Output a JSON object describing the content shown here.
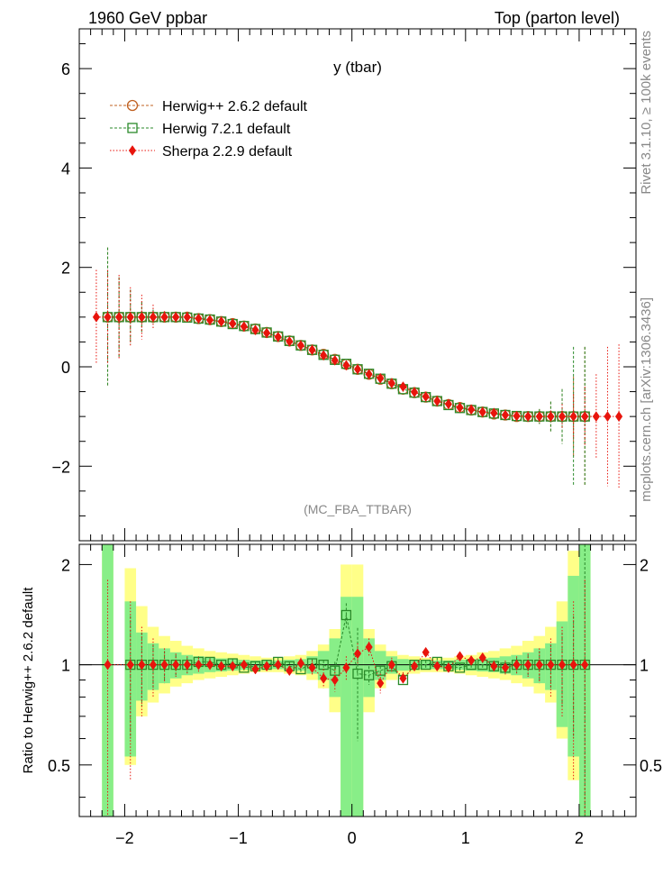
{
  "header": {
    "left": "1960 GeV ppbar",
    "right": "Top (parton level)"
  },
  "side_labels": {
    "rivet": "Rivet 3.1.10, ≥ 100k events",
    "mcplots": "mcplots.cern.ch [arXiv:1306.3436]"
  },
  "chart_data": [
    {
      "type": "line",
      "title": "y (tbar)",
      "watermark": "(MC_FBA_TTBAR)",
      "xlim": [
        -2.4,
        2.5
      ],
      "ylim": [
        -3.5,
        6.8
      ],
      "yticks": [
        -2,
        0,
        2,
        4,
        6
      ],
      "legend_position": "top-left",
      "series": [
        {
          "name": "Herwig++ 2.6.2 default",
          "color": "#c06020",
          "marker": "open-circle",
          "x": [
            -2.15,
            -2.05,
            -1.95,
            -1.85,
            -1.75,
            -1.65,
            -1.55,
            -1.45,
            -1.35,
            -1.25,
            -1.15,
            -1.05,
            -0.95,
            -0.85,
            -0.75,
            -0.65,
            -0.55,
            -0.45,
            -0.35,
            -0.25,
            -0.15,
            -0.05,
            0.05,
            0.15,
            0.25,
            0.35,
            0.45,
            0.55,
            0.65,
            0.75,
            0.85,
            0.95,
            1.05,
            1.15,
            1.25,
            1.35,
            1.45,
            1.55,
            1.65,
            1.75,
            1.85,
            1.95,
            2.05
          ],
          "y": [
            1.0,
            1.0,
            1.0,
            1.0,
            1.0,
            1.0,
            1.0,
            1.0,
            0.97,
            0.95,
            0.91,
            0.87,
            0.82,
            0.76,
            0.69,
            0.61,
            0.52,
            0.43,
            0.34,
            0.25,
            0.15,
            0.05,
            -0.05,
            -0.15,
            -0.25,
            -0.34,
            -0.45,
            -0.52,
            -0.61,
            -0.69,
            -0.76,
            -0.82,
            -0.87,
            -0.91,
            -0.95,
            -0.97,
            -1.0,
            -1.0,
            -1.0,
            -1.0,
            -1.0,
            -1.0,
            -1.0
          ],
          "err": [
            1.4,
            0.8,
            0.55,
            0.3,
            0.15,
            0.1,
            0.06,
            0.05,
            0.05,
            0.05,
            0.05,
            0.05,
            0.05,
            0.05,
            0.05,
            0.05,
            0.05,
            0.05,
            0.05,
            0.05,
            0.05,
            0.05,
            0.05,
            0.05,
            0.05,
            0.05,
            0.05,
            0.05,
            0.05,
            0.05,
            0.05,
            0.05,
            0.05,
            0.05,
            0.05,
            0.05,
            0.06,
            0.1,
            0.15,
            0.3,
            0.55,
            0.8,
            1.4
          ]
        },
        {
          "name": "Herwig 7.2.1 default",
          "color": "#2a8a2a",
          "marker": "open-square",
          "x": [
            -2.15,
            -2.05,
            -1.95,
            -1.85,
            -1.75,
            -1.65,
            -1.55,
            -1.45,
            -1.35,
            -1.25,
            -1.15,
            -1.05,
            -0.95,
            -0.85,
            -0.75,
            -0.65,
            -0.55,
            -0.45,
            -0.35,
            -0.25,
            -0.15,
            -0.05,
            0.05,
            0.15,
            0.25,
            0.35,
            0.45,
            0.55,
            0.65,
            0.75,
            0.85,
            0.95,
            1.05,
            1.15,
            1.25,
            1.35,
            1.45,
            1.55,
            1.65,
            1.75,
            1.85,
            1.95,
            2.05
          ],
          "y": [
            1.0,
            1.0,
            1.0,
            1.0,
            1.0,
            1.0,
            1.0,
            0.99,
            0.97,
            0.95,
            0.91,
            0.86,
            0.82,
            0.76,
            0.69,
            0.61,
            0.52,
            0.43,
            0.34,
            0.24,
            0.14,
            0.06,
            -0.05,
            -0.14,
            -0.24,
            -0.34,
            -0.45,
            -0.52,
            -0.61,
            -0.69,
            -0.77,
            -0.83,
            -0.87,
            -0.91,
            -0.94,
            -0.97,
            -0.99,
            -1.0,
            -1.0,
            -1.0,
            -1.0,
            -1.0,
            -1.0
          ],
          "err": [
            1.4,
            0.8,
            0.55,
            0.3,
            0.15,
            0.1,
            0.06,
            0.05,
            0.05,
            0.05,
            0.05,
            0.05,
            0.05,
            0.05,
            0.05,
            0.05,
            0.05,
            0.05,
            0.05,
            0.05,
            0.05,
            0.05,
            0.05,
            0.05,
            0.05,
            0.05,
            0.05,
            0.05,
            0.05,
            0.05,
            0.05,
            0.05,
            0.05,
            0.05,
            0.05,
            0.05,
            0.06,
            0.1,
            0.15,
            0.3,
            0.55,
            1.4,
            1.4
          ]
        },
        {
          "name": "Sherpa 2.2.9 default",
          "color": "#e8140c",
          "marker": "filled-diamond",
          "x": [
            -2.25,
            -2.15,
            -2.05,
            -1.95,
            -1.85,
            -1.75,
            -1.65,
            -1.55,
            -1.45,
            -1.35,
            -1.25,
            -1.15,
            -1.05,
            -0.95,
            -0.85,
            -0.75,
            -0.65,
            -0.55,
            -0.45,
            -0.35,
            -0.25,
            -0.15,
            -0.05,
            0.05,
            0.15,
            0.25,
            0.35,
            0.45,
            0.55,
            0.65,
            0.75,
            0.85,
            0.95,
            1.05,
            1.15,
            1.25,
            1.35,
            1.45,
            1.55,
            1.65,
            1.75,
            1.85,
            1.95,
            2.05,
            2.15,
            2.25,
            2.35
          ],
          "y": [
            1.0,
            1.0,
            1.0,
            1.0,
            1.0,
            1.0,
            1.0,
            1.0,
            1.0,
            0.97,
            0.94,
            0.91,
            0.87,
            0.81,
            0.74,
            0.68,
            0.6,
            0.51,
            0.43,
            0.34,
            0.23,
            0.13,
            0.03,
            -0.05,
            -0.15,
            -0.23,
            -0.33,
            -0.4,
            -0.51,
            -0.6,
            -0.69,
            -0.75,
            -0.82,
            -0.86,
            -0.91,
            -0.93,
            -0.97,
            -0.99,
            -1.0,
            -1.0,
            -1.0,
            -1.0,
            -1.0,
            -1.0,
            -1.0,
            -1.0,
            -1.0
          ],
          "err": [
            0.95,
            0.95,
            0.85,
            0.6,
            0.45,
            0.25,
            0.12,
            0.08,
            0.06,
            0.05,
            0.05,
            0.05,
            0.05,
            0.05,
            0.05,
            0.05,
            0.05,
            0.05,
            0.05,
            0.05,
            0.05,
            0.05,
            0.05,
            0.05,
            0.05,
            0.05,
            0.05,
            0.05,
            0.05,
            0.05,
            0.05,
            0.05,
            0.05,
            0.05,
            0.05,
            0.05,
            0.05,
            0.05,
            0.06,
            0.08,
            0.12,
            0.25,
            0.45,
            0.6,
            0.85,
            1.4,
            1.45
          ]
        }
      ]
    },
    {
      "type": "line",
      "ylabel": "Ratio to Herwig++ 2.6.2 default",
      "xlim": [
        -2.4,
        2.5
      ],
      "ylim": [
        0.35,
        2.3
      ],
      "yticks": [
        0.5,
        1,
        2
      ],
      "xticks": [
        -2,
        -1,
        0,
        1,
        2
      ],
      "reference": 1.0,
      "band_bins": [
        -2.2,
        -2.1,
        -2.0,
        -1.9,
        -1.8,
        -1.7,
        -1.6,
        -1.5,
        -1.4,
        -1.3,
        -1.2,
        -1.1,
        -1.0,
        -0.9,
        -0.8,
        -0.7,
        -0.6,
        -0.5,
        -0.4,
        -0.3,
        -0.2,
        -0.1,
        0.0,
        0.1,
        0.2,
        0.3,
        0.4,
        0.5,
        0.6,
        0.7,
        0.8,
        0.9,
        1.0,
        1.1,
        1.2,
        1.3,
        1.4,
        1.5,
        1.6,
        1.7,
        1.8,
        1.9,
        2.0,
        2.1
      ],
      "band_green": [
        [
          0.3,
          2.3
        ],
        [
          1.0,
          1.0
        ],
        [
          0.53,
          1.55
        ],
        [
          0.78,
          1.25
        ],
        [
          0.84,
          1.16
        ],
        [
          0.88,
          1.12
        ],
        [
          0.91,
          1.09
        ],
        [
          0.93,
          1.07
        ],
        [
          0.94,
          1.06
        ],
        [
          0.95,
          1.05
        ],
        [
          0.955,
          1.045
        ],
        [
          0.96,
          1.04
        ],
        [
          0.965,
          1.035
        ],
        [
          0.97,
          1.03
        ],
        [
          0.97,
          1.03
        ],
        [
          0.97,
          1.03
        ],
        [
          0.965,
          1.035
        ],
        [
          0.96,
          1.04
        ],
        [
          0.94,
          1.06
        ],
        [
          0.9,
          1.1
        ],
        [
          0.8,
          1.2
        ],
        [
          0.3,
          1.6
        ],
        [
          0.3,
          1.6
        ],
        [
          0.8,
          1.2
        ],
        [
          0.9,
          1.1
        ],
        [
          0.94,
          1.06
        ],
        [
          0.96,
          1.04
        ],
        [
          0.965,
          1.035
        ],
        [
          0.97,
          1.03
        ],
        [
          0.97,
          1.03
        ],
        [
          0.97,
          1.03
        ],
        [
          0.965,
          1.035
        ],
        [
          0.96,
          1.04
        ],
        [
          0.955,
          1.045
        ],
        [
          0.95,
          1.05
        ],
        [
          0.94,
          1.06
        ],
        [
          0.93,
          1.07
        ],
        [
          0.91,
          1.09
        ],
        [
          0.88,
          1.12
        ],
        [
          0.84,
          1.16
        ],
        [
          0.65,
          1.35
        ],
        [
          0.53,
          1.85
        ],
        [
          0.3,
          2.3
        ]
      ],
      "band_yellow": [
        [
          0.3,
          2.3
        ],
        [
          1.0,
          1.0
        ],
        [
          0.5,
          1.95
        ],
        [
          0.7,
          1.5
        ],
        [
          0.77,
          1.3
        ],
        [
          0.82,
          1.22
        ],
        [
          0.86,
          1.18
        ],
        [
          0.88,
          1.14
        ],
        [
          0.9,
          1.12
        ],
        [
          0.91,
          1.1
        ],
        [
          0.92,
          1.09
        ],
        [
          0.93,
          1.08
        ],
        [
          0.94,
          1.07
        ],
        [
          0.95,
          1.06
        ],
        [
          0.95,
          1.05
        ],
        [
          0.95,
          1.05
        ],
        [
          0.94,
          1.06
        ],
        [
          0.93,
          1.07
        ],
        [
          0.9,
          1.1
        ],
        [
          0.85,
          1.15
        ],
        [
          0.72,
          1.28
        ],
        [
          0.3,
          2.0
        ],
        [
          0.3,
          2.0
        ],
        [
          0.72,
          1.28
        ],
        [
          0.85,
          1.15
        ],
        [
          0.9,
          1.1
        ],
        [
          0.93,
          1.07
        ],
        [
          0.94,
          1.06
        ],
        [
          0.95,
          1.05
        ],
        [
          0.95,
          1.05
        ],
        [
          0.95,
          1.05
        ],
        [
          0.94,
          1.06
        ],
        [
          0.93,
          1.07
        ],
        [
          0.92,
          1.09
        ],
        [
          0.91,
          1.1
        ],
        [
          0.9,
          1.12
        ],
        [
          0.88,
          1.14
        ],
        [
          0.86,
          1.18
        ],
        [
          0.82,
          1.22
        ],
        [
          0.77,
          1.3
        ],
        [
          0.6,
          1.55
        ],
        [
          0.45,
          2.2
        ],
        [
          0.3,
          2.3
        ]
      ],
      "series": [
        {
          "name": "Herwig 7.2.1 default",
          "color": "#2a8a2a",
          "marker": "open-square",
          "x": [
            -1.95,
            -1.85,
            -1.75,
            -1.65,
            -1.55,
            -1.45,
            -1.35,
            -1.25,
            -1.15,
            -1.05,
            -0.95,
            -0.85,
            -0.75,
            -0.65,
            -0.55,
            -0.45,
            -0.35,
            -0.25,
            -0.15,
            -0.05,
            0.05,
            0.15,
            0.25,
            0.35,
            0.45,
            0.55,
            0.65,
            0.75,
            0.85,
            0.95,
            1.05,
            1.15,
            1.25,
            1.35,
            1.45,
            1.55,
            1.65,
            1.75,
            1.85,
            1.95,
            2.05
          ],
          "y": [
            1.0,
            1.0,
            1.0,
            1.0,
            1.0,
            1.0,
            1.02,
            1.02,
            1.0,
            1.01,
            0.98,
            0.99,
            1.0,
            1.02,
            0.99,
            0.97,
            1.01,
            1.0,
            0.96,
            1.41,
            0.94,
            0.93,
            0.96,
            0.99,
            0.9,
            1.0,
            1.0,
            1.02,
            0.99,
            0.98,
            1.0,
            1.0,
            0.99,
            0.98,
            1.0,
            1.0,
            1.0,
            1.0,
            1.0,
            1.0,
            1.0
          ],
          "err": [
            0.4,
            0.25,
            0.15,
            0.1,
            0.07,
            0.05,
            0.04,
            0.03,
            0.03,
            0.03,
            0.03,
            0.03,
            0.03,
            0.03,
            0.03,
            0.03,
            0.03,
            0.03,
            0.06,
            0.12,
            0.35,
            0.06,
            0.03,
            0.03,
            0.03,
            0.03,
            0.03,
            0.03,
            0.03,
            0.03,
            0.03,
            0.03,
            0.03,
            0.04,
            0.05,
            0.07,
            0.1,
            0.15,
            0.25,
            0.4,
            1.4
          ]
        },
        {
          "name": "Sherpa 2.2.9 default",
          "color": "#e8140c",
          "marker": "filled-diamond",
          "x": [
            -2.15,
            -1.95,
            -1.85,
            -1.75,
            -1.65,
            -1.55,
            -1.45,
            -1.35,
            -1.25,
            -1.15,
            -1.05,
            -0.95,
            -0.85,
            -0.75,
            -0.65,
            -0.55,
            -0.45,
            -0.35,
            -0.25,
            -0.15,
            -0.05,
            0.05,
            0.15,
            0.25,
            0.35,
            0.45,
            0.55,
            0.65,
            0.75,
            0.85,
            0.95,
            1.05,
            1.15,
            1.25,
            1.35,
            1.45,
            1.55,
            1.65,
            1.75,
            1.85,
            1.95,
            2.05
          ],
          "y": [
            1.0,
            1.0,
            1.0,
            1.0,
            1.0,
            1.0,
            1.0,
            1.0,
            1.0,
            0.99,
            0.99,
            1.0,
            0.97,
            0.99,
            1.0,
            0.96,
            1.01,
            0.98,
            0.91,
            0.9,
            0.98,
            1.08,
            1.13,
            0.88,
            1.0,
            0.91,
            0.99,
            1.09,
            0.99,
            0.98,
            1.06,
            1.03,
            1.05,
            0.99,
            0.98,
            1.0,
            1.0,
            1.0,
            1.0,
            1.0,
            1.0,
            1.0
          ],
          "err": [
            0.8,
            0.55,
            0.3,
            0.2,
            0.12,
            0.08,
            0.06,
            0.05,
            0.04,
            0.03,
            0.03,
            0.03,
            0.03,
            0.03,
            0.03,
            0.03,
            0.04,
            0.05,
            0.06,
            0.07,
            0.08,
            0.08,
            0.07,
            0.06,
            0.05,
            0.04,
            0.03,
            0.03,
            0.03,
            0.03,
            0.03,
            0.03,
            0.03,
            0.04,
            0.05,
            0.06,
            0.08,
            0.12,
            0.2,
            0.3,
            0.55,
            0.8
          ]
        }
      ]
    }
  ]
}
